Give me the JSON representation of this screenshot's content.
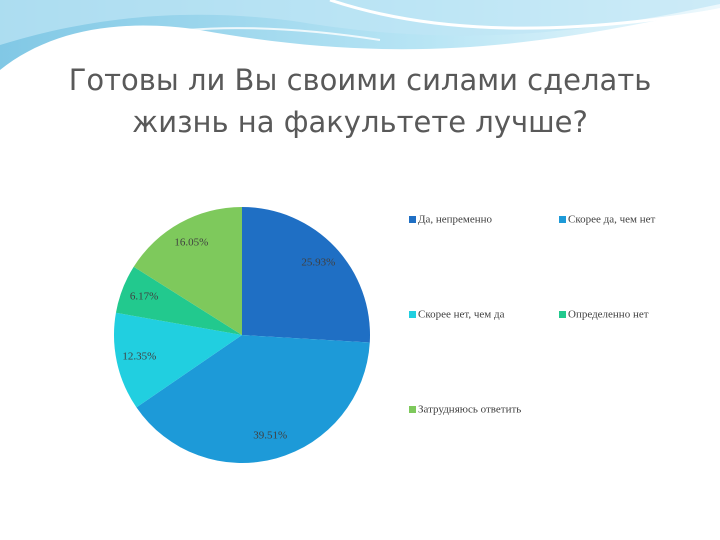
{
  "chart_data": {
    "type": "pie",
    "title": [
      "Готовы ли Вы своими силами  сделать",
      "жизнь на факультете лучше?"
    ],
    "categories": [
      "Да, непременно",
      "Скорее да, чем нет",
      "Скорее нет, чем да",
      "Определенно нет",
      "Затрудняюсь ответить"
    ],
    "values": [
      25.93,
      39.51,
      12.35,
      6.17,
      16.05
    ],
    "value_labels": [
      "25.93%",
      "39.51%",
      "12.35%",
      "6.17%",
      "16.05%"
    ],
    "colors": [
      "#1f6fc4",
      "#1d9ad8",
      "#21cfe0",
      "#22c98e",
      "#7ec95c"
    ]
  }
}
